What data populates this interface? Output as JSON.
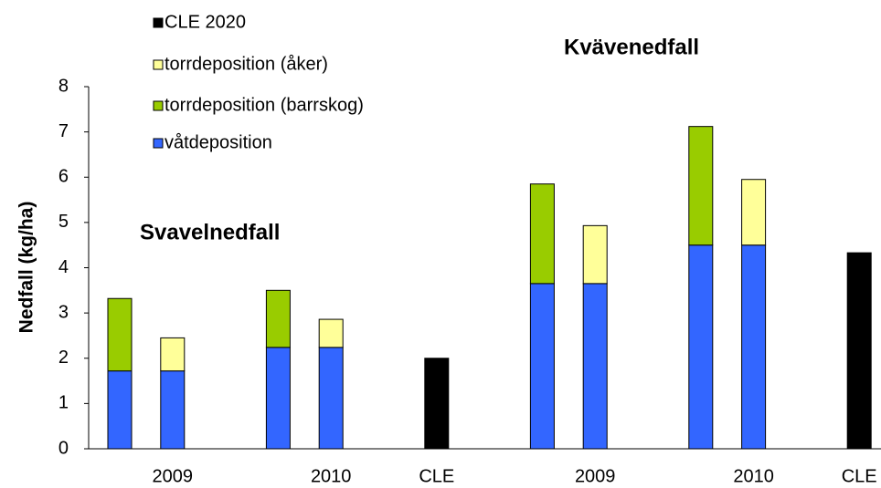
{
  "chart_data": {
    "type": "stacked-bar",
    "y_label": "Nedfall (kg/ha)",
    "annotations": [
      "Svavelnedfall",
      "Kvävenedfall"
    ],
    "categories": [
      null,
      "2009",
      null,
      null,
      "2010",
      null,
      "CLE",
      null,
      null,
      "2009",
      null,
      null,
      "2010",
      null,
      "CLE"
    ],
    "series": [
      {
        "name": "våtdeposition",
        "color": "#3366ff",
        "values": [
          1.72,
          1.72,
          null,
          2.24,
          2.24,
          null,
          null,
          null,
          3.65,
          3.65,
          null,
          4.5,
          4.5,
          null,
          null
        ]
      },
      {
        "name": "torrdeposition (barrskog)",
        "color": "#99cc00",
        "values": [
          1.6,
          null,
          null,
          1.26,
          null,
          null,
          null,
          null,
          2.2,
          null,
          null,
          2.62,
          null,
          null,
          null
        ]
      },
      {
        "name": "torrdeposition (åker)",
        "color": "#ffff99",
        "values": [
          null,
          0.73,
          null,
          null,
          0.62,
          null,
          null,
          null,
          null,
          1.28,
          null,
          null,
          1.45,
          null,
          null
        ]
      },
      {
        "name": "CLE 2020",
        "color": "#000000",
        "values": [
          null,
          null,
          null,
          null,
          null,
          null,
          2.0,
          null,
          null,
          null,
          null,
          null,
          null,
          null,
          4.33
        ]
      }
    ],
    "ylim": [
      0,
      8
    ],
    "yticks": [
      0,
      1,
      2,
      3,
      4,
      5,
      6,
      7,
      8
    ],
    "grid": false
  }
}
